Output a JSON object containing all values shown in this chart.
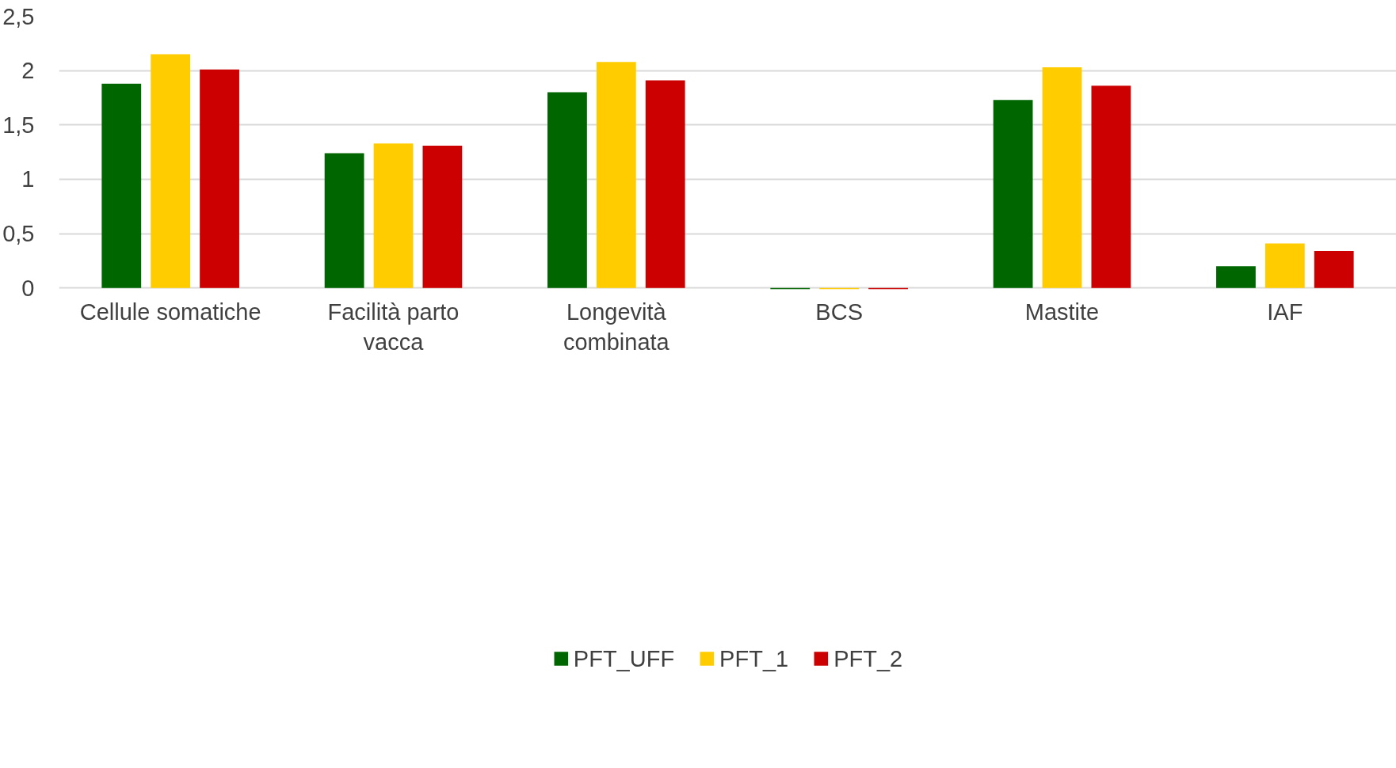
{
  "chart_data": {
    "type": "bar",
    "categories": [
      "Cellule somatiche",
      "Facilità parto vacca",
      "Longevità combinata",
      "BCS",
      "Mastite",
      "IAF"
    ],
    "series": [
      {
        "name": "PFT_UFF",
        "color": "#006600",
        "values": [
          1.88,
          1.24,
          1.8,
          -0.01,
          1.73,
          0.2
        ]
      },
      {
        "name": "PFT_1",
        "color": "#ffcc00",
        "values": [
          2.15,
          1.33,
          2.08,
          -0.01,
          2.03,
          0.41
        ]
      },
      {
        "name": "PFT_2",
        "color": "#cc0000",
        "values": [
          2.01,
          1.31,
          1.91,
          -0.01,
          1.86,
          0.34
        ]
      }
    ],
    "ylim": [
      -0.02,
      2.5
    ],
    "yticks": [
      0,
      {
        "value": 0.5,
        "label": "0,5"
      },
      1,
      {
        "value": 1.5,
        "label": "1,5"
      },
      2,
      {
        "value": 2.5,
        "label": "2,5"
      }
    ],
    "grid": "y",
    "legend": "bottom"
  }
}
